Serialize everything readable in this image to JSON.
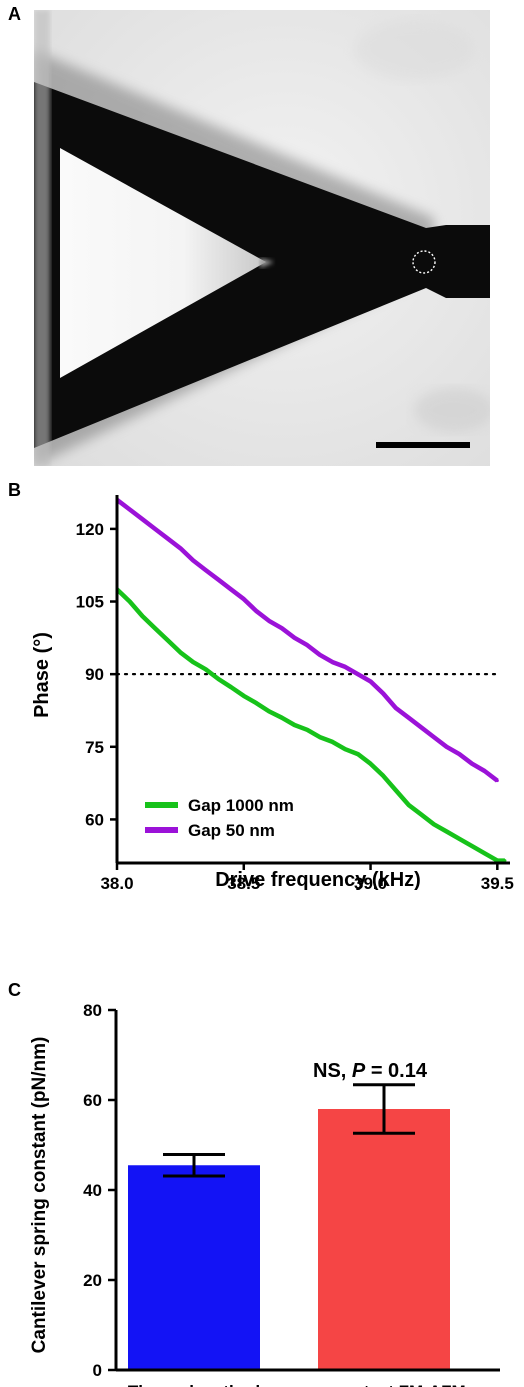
{
  "figure": {
    "panel_a_label": "A",
    "panel_b_label": "B",
    "panel_c_label": "C"
  },
  "colors": {
    "gap1000": "#17c21a",
    "gap50": "#9b12d8",
    "thermal": "#1313f5",
    "fmafm": "#f54545"
  },
  "chart_data": [
    {
      "type": "line",
      "xlabel": "Drive frequency (kHz)",
      "ylabel": "Phase (°)",
      "xlim": [
        38.0,
        39.55
      ],
      "ylim": [
        51,
        127
      ],
      "xticks": [
        38.0,
        38.5,
        39.0,
        39.5
      ],
      "xtick_labels": [
        "38.0",
        "38.5",
        "39.0",
        "39.5"
      ],
      "yticks": [
        60,
        75,
        90,
        105,
        120
      ],
      "yticklabels": [
        "60",
        "75",
        "90",
        "105",
        "120"
      ],
      "reference_line": {
        "y": 90,
        "style": "dotted"
      },
      "legend_position": "bottom-left",
      "series": [
        {
          "name": "Gap 1000 nm",
          "color": "#17c21a",
          "x": [
            38.0,
            38.05,
            38.1,
            38.15,
            38.2,
            38.25,
            38.3,
            38.35,
            38.4,
            38.45,
            38.5,
            38.55,
            38.6,
            38.65,
            38.7,
            38.75,
            38.8,
            38.85,
            38.9,
            38.95,
            39.0,
            39.05,
            39.1,
            39.15,
            39.2,
            39.25,
            39.3,
            39.35,
            39.4,
            39.45,
            39.5,
            39.53
          ],
          "y": [
            107.5,
            105,
            102,
            99.5,
            97,
            94.5,
            92.5,
            91,
            89,
            87.3,
            85.5,
            84,
            82.3,
            81,
            79.5,
            78.5,
            77,
            76,
            74.5,
            73.5,
            71.5,
            69,
            66,
            63,
            61,
            59,
            57.5,
            56,
            54.5,
            53,
            51.5,
            51.5
          ]
        },
        {
          "name": "Gap 50 nm",
          "color": "#9b12d8",
          "x": [
            38.0,
            38.05,
            38.1,
            38.15,
            38.2,
            38.25,
            38.3,
            38.35,
            38.4,
            38.45,
            38.5,
            38.55,
            38.6,
            38.65,
            38.7,
            38.75,
            38.8,
            38.85,
            38.9,
            38.95,
            39.0,
            39.05,
            39.1,
            39.15,
            39.2,
            39.25,
            39.3,
            39.35,
            39.4,
            39.45,
            39.5
          ],
          "y": [
            126,
            124,
            122,
            120,
            118,
            116,
            113.5,
            111.5,
            109.5,
            107.5,
            105.5,
            103,
            101,
            99.5,
            97.5,
            96,
            94,
            92.5,
            91.5,
            90,
            88.5,
            86,
            83,
            81,
            79,
            77,
            75,
            73.5,
            71.5,
            70,
            68
          ]
        }
      ]
    },
    {
      "type": "bar",
      "categories": [
        "Thermal method",
        "noncontact FM-AFM"
      ],
      "ylabel": "Cantilever spring constant (pN/nm)",
      "ylim": [
        0,
        80
      ],
      "yticks": [
        0,
        20,
        40,
        60,
        80
      ],
      "yticklabels": [
        "0",
        "20",
        "40",
        "60",
        "80"
      ],
      "series": [
        {
          "values": [
            45.5,
            58
          ],
          "errors": [
            2.4,
            5.4
          ],
          "colors": [
            "#1313f5",
            "#f54545"
          ]
        }
      ],
      "annotation": {
        "prefix": "NS, ",
        "p_symbol": "P",
        "suffix": " = 0.14",
        "category_index": 1
      }
    }
  ]
}
